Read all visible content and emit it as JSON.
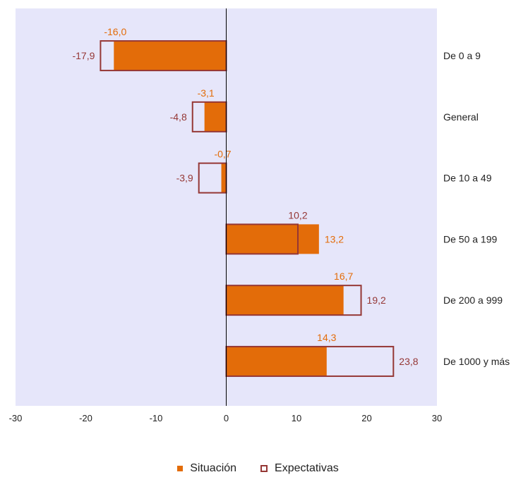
{
  "chart_data": {
    "type": "bar",
    "orientation": "horizontal",
    "categories": [
      "De 0 a 9",
      "General",
      "De 10 a 49",
      "De 50 a 199",
      "De 200 a 999",
      "De 1000 y más"
    ],
    "series": [
      {
        "name": "Situación",
        "values": [
          -16.0,
          -3.1,
          -0.7,
          13.2,
          16.7,
          14.3
        ],
        "labels": [
          "-16,0",
          "-3,1",
          "-0,7",
          "13,2",
          "16,7",
          "14,3"
        ],
        "color": "#E36C09"
      },
      {
        "name": "Expectativas",
        "values": [
          -17.9,
          -4.8,
          -3.9,
          10.2,
          19.2,
          23.8
        ],
        "labels": [
          "-17,9",
          "-4,8",
          "-3,9",
          "10,2",
          "19,2",
          "23,8"
        ],
        "color": "#953735"
      }
    ],
    "xlim": [
      -30,
      30
    ],
    "xticks": [
      -30,
      -20,
      -10,
      0,
      10,
      20,
      30
    ],
    "xtick_labels": [
      "-30",
      "-20",
      "-10",
      "0",
      "10",
      "20",
      "30"
    ],
    "title": "",
    "xlabel": "",
    "ylabel": "",
    "grid": false,
    "plot_background": "#E6E6FA",
    "legend_position": "bottom"
  }
}
